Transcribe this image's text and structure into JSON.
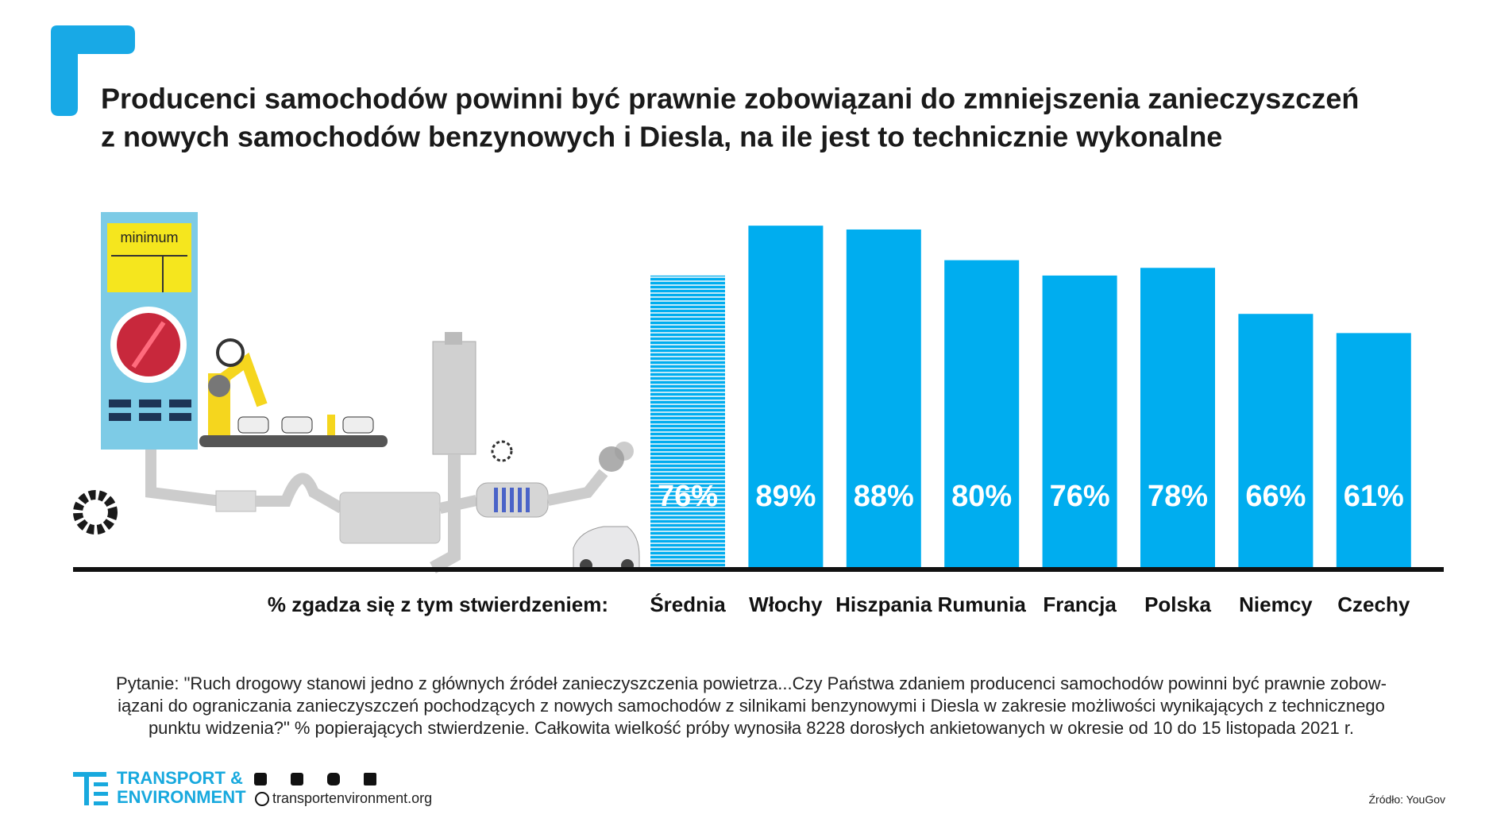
{
  "chart_data": {
    "type": "bar",
    "title": [
      "Producenci samochodów powinni być prawnie zobowiązani do zmniejszenia zanieczyszczeń",
      "z nowych samochodów benzynowych i Diesla, na ile jest to technicznie wykonalne"
    ],
    "axis_label": "% zgadza się z tym stwierdzeniem:",
    "categories": [
      "Średnia",
      "Włochy",
      "Hiszpania",
      "Rumunia",
      "Francja",
      "Polska",
      "Niemcy",
      "Czechy"
    ],
    "values": [
      76,
      89,
      88,
      80,
      76,
      78,
      66,
      61
    ],
    "value_labels": [
      "76%",
      "89%",
      "88%",
      "80%",
      "76%",
      "78%",
      "66%",
      "61%"
    ],
    "color": "#00adef"
  },
  "illustration": {
    "label": "minimum"
  },
  "note": [
    "Pytanie: \"Ruch drogowy stanowi jedno z głównych źródeł zanieczyszczenia powietrza...Czy Państwa zdaniem producenci samochodów powinni być prawnie zobow-",
    "iązani do ograniczania zanieczyszczeń pochodzących z nowych samochodów z silnikami benzynowymi i Diesla w zakresie możliwości wynikających z technicznego",
    "punktu widzenia?\" % popierających stwierdzenie. Całkowita wielkość próby wynosiła 8228 dorosłych ankietowanych w okresie od 10 do 15 listopada 2021 r."
  ],
  "footer": {
    "logo": [
      "TRANSPORT &",
      "ENVIRONMENT"
    ],
    "website": "transportenvironment.org",
    "source": "Źródło: YouGov"
  }
}
